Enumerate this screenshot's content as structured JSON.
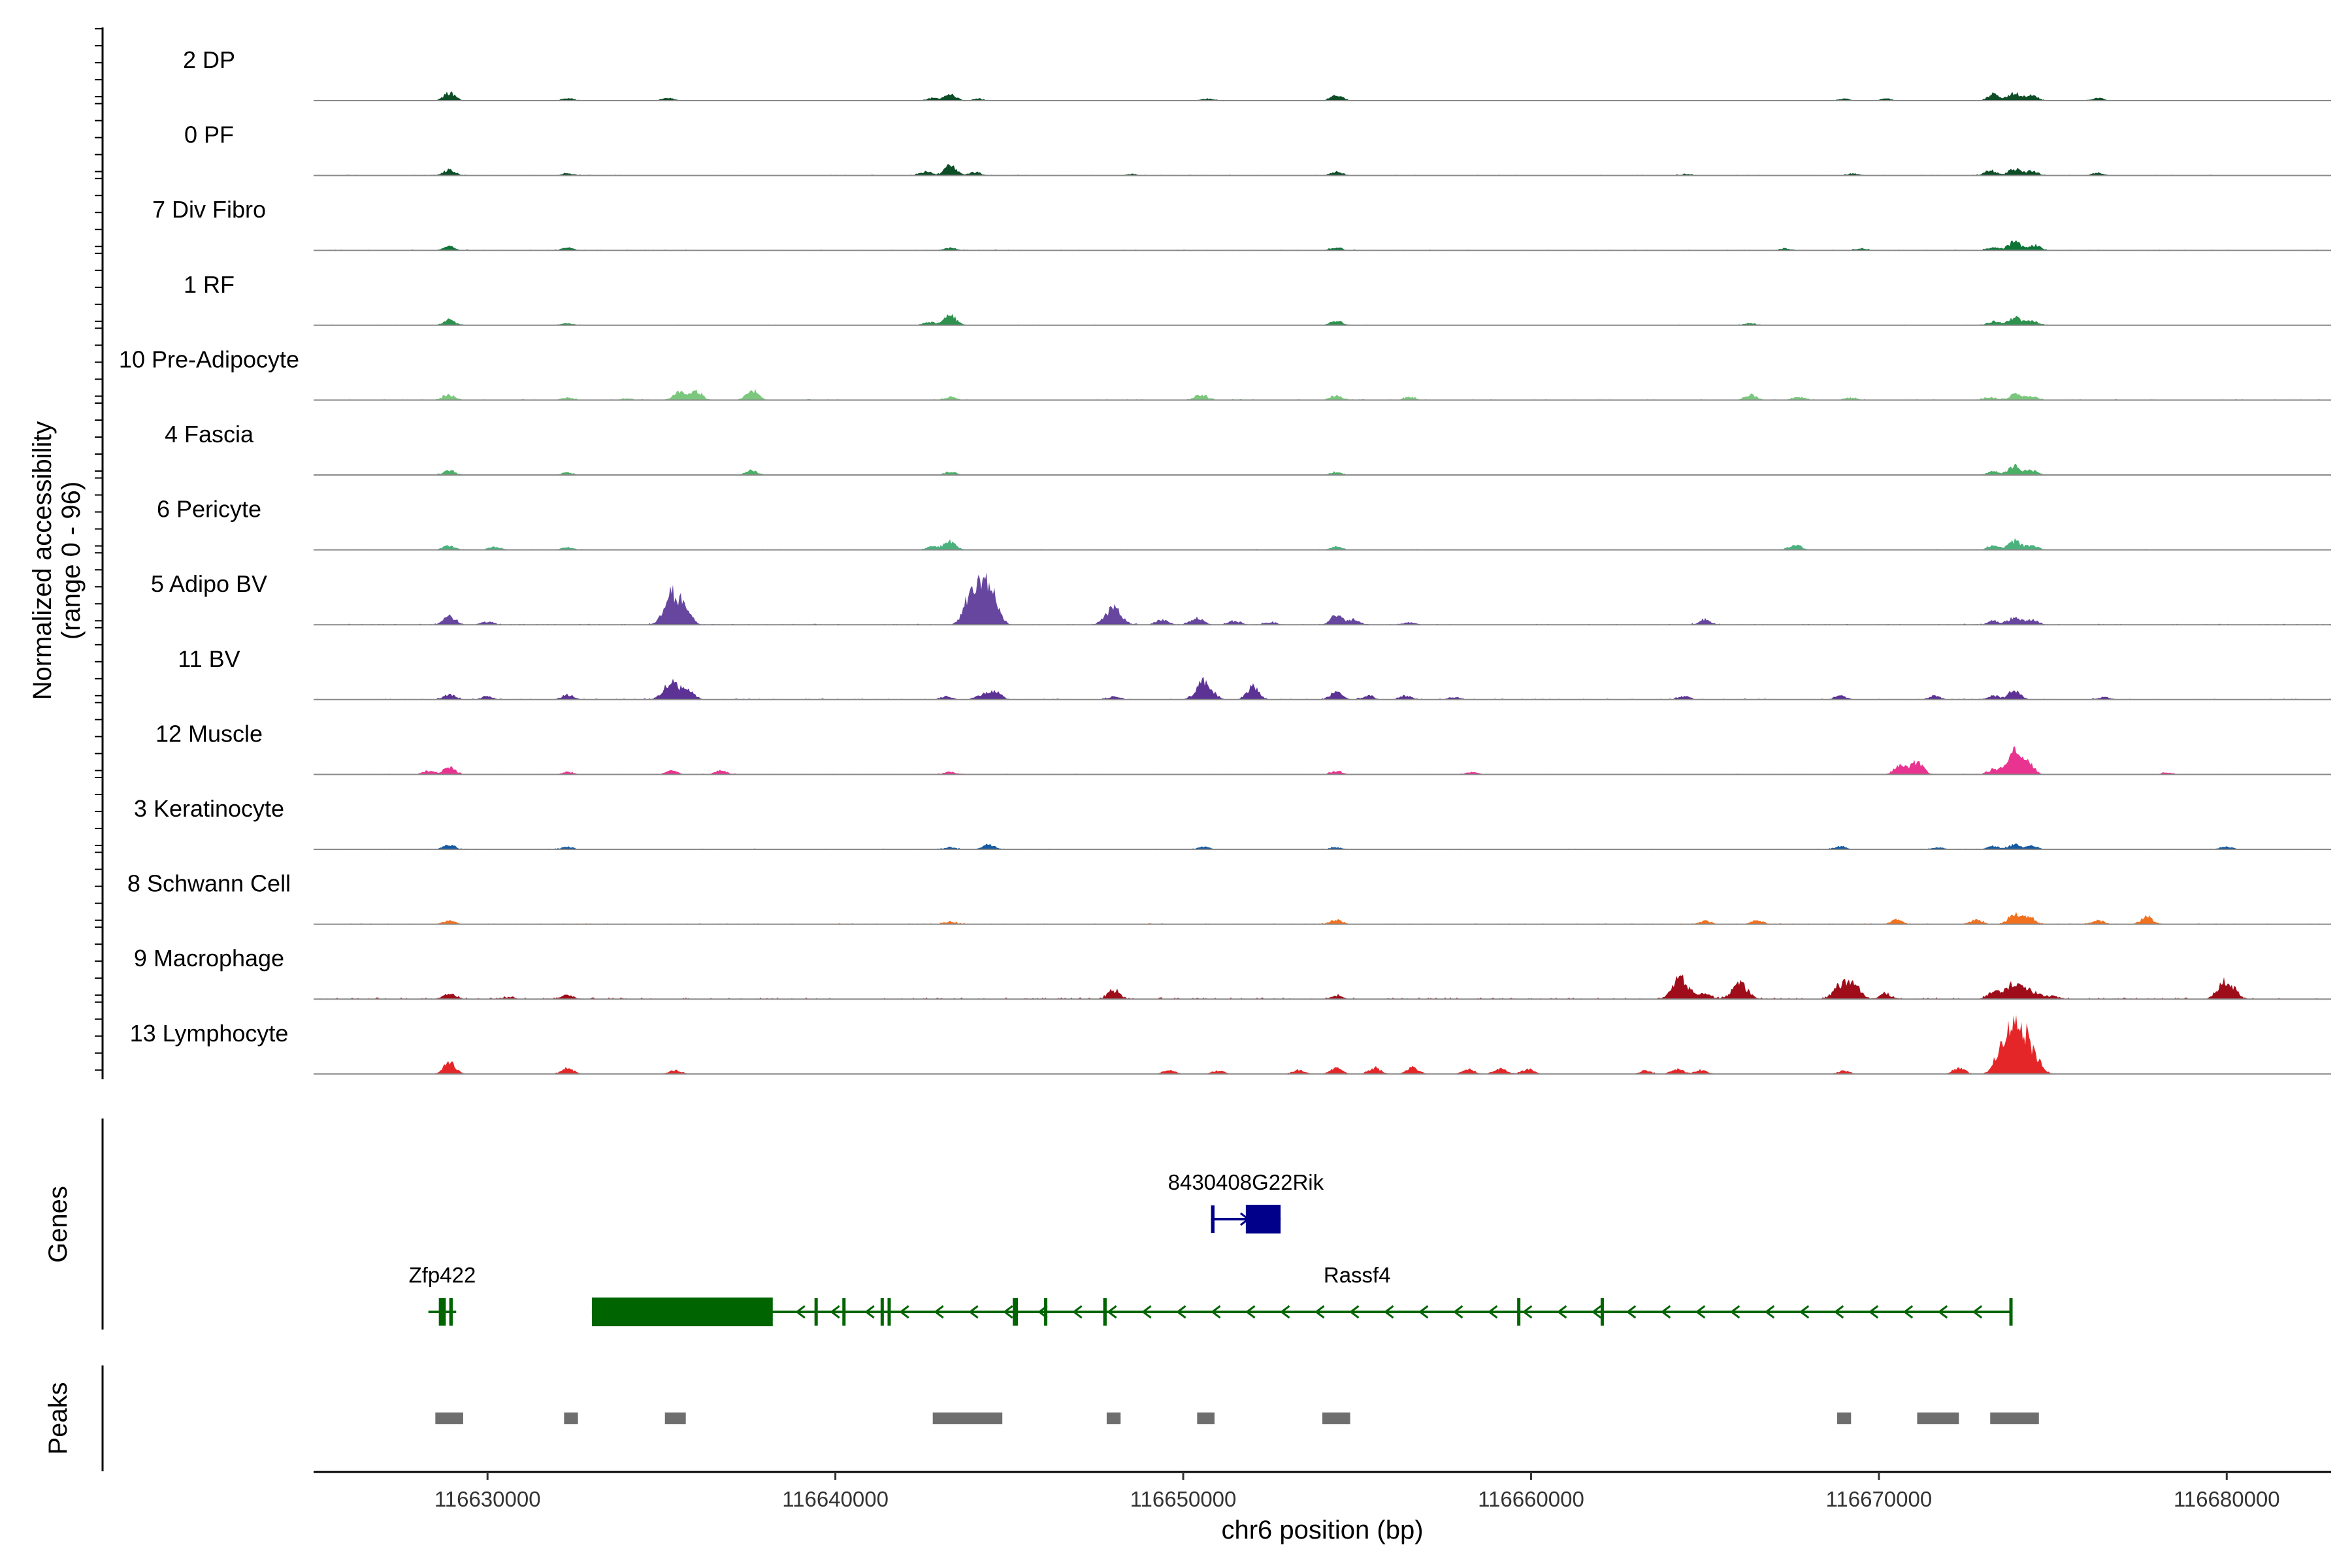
{
  "chart_data": {
    "type": "area",
    "region": {
      "chromosome": "chr6",
      "start": 116625000,
      "end": 116683000
    },
    "ylabel_line1": "Normalized accessibility",
    "ylabel_line2": "(range 0 - 96)",
    "xlabel": "chr6 position (bp)",
    "x_ticks": [
      116630000,
      116640000,
      116650000,
      116660000,
      116670000,
      116680000
    ],
    "x_tick_labels": [
      "116630000",
      "116640000",
      "116650000",
      "116660000",
      "116670000",
      "116680000"
    ],
    "ylim": [
      0,
      96
    ],
    "grid": false,
    "panel_labels": {
      "genes": "Genes",
      "peaks": "Peaks"
    },
    "tracks": [
      {
        "name": "2 DP",
        "color": "#00441b",
        "peaks": [
          [
            116628900,
            12
          ],
          [
            116632300,
            4
          ],
          [
            116635200,
            4
          ],
          [
            116643300,
            10
          ],
          [
            116642800,
            4
          ],
          [
            116644100,
            3
          ],
          [
            116650700,
            3
          ],
          [
            116654400,
            9
          ],
          [
            116669000,
            3
          ],
          [
            116670200,
            3
          ],
          [
            116673900,
            12
          ],
          [
            116673300,
            10
          ],
          [
            116674400,
            8
          ],
          [
            116676300,
            4
          ]
        ],
        "baseline": 0.8
      },
      {
        "name": "0 PF",
        "color": "#00441b",
        "peaks": [
          [
            116628900,
            9
          ],
          [
            116632300,
            3
          ],
          [
            116643300,
            16
          ],
          [
            116642600,
            6
          ],
          [
            116644000,
            5
          ],
          [
            116654400,
            6
          ],
          [
            116648500,
            2
          ],
          [
            116664500,
            2
          ],
          [
            116669300,
            3
          ],
          [
            116673900,
            11
          ],
          [
            116673200,
            8
          ],
          [
            116674400,
            7
          ],
          [
            116676300,
            4
          ]
        ],
        "baseline": 1.2
      },
      {
        "name": "7 Div Fibro",
        "color": "#006d2c",
        "peaks": [
          [
            116628900,
            6
          ],
          [
            116632300,
            4
          ],
          [
            116643300,
            4
          ],
          [
            116654400,
            4
          ],
          [
            116667300,
            3
          ],
          [
            116669500,
            3
          ],
          [
            116673900,
            14
          ],
          [
            116673300,
            5
          ],
          [
            116674500,
            8
          ]
        ],
        "baseline": 1.3
      },
      {
        "name": "1 RF",
        "color": "#238b45",
        "peaks": [
          [
            116628900,
            9
          ],
          [
            116632300,
            3
          ],
          [
            116643300,
            16
          ],
          [
            116642700,
            5
          ],
          [
            116654400,
            7
          ],
          [
            116666300,
            3
          ],
          [
            116673900,
            12
          ],
          [
            116673300,
            6
          ],
          [
            116674400,
            7
          ]
        ],
        "baseline": 1.0
      },
      {
        "name": "10 Pre-Adipocyte",
        "color": "#74c476",
        "peaks": [
          [
            116628900,
            9
          ],
          [
            116632300,
            4
          ],
          [
            116635500,
            12
          ],
          [
            116636000,
            14
          ],
          [
            116637600,
            16
          ],
          [
            116634000,
            3
          ],
          [
            116643300,
            5
          ],
          [
            116650500,
            9
          ],
          [
            116654400,
            7
          ],
          [
            116656500,
            5
          ],
          [
            116666300,
            9
          ],
          [
            116667700,
            5
          ],
          [
            116669200,
            4
          ],
          [
            116673900,
            9
          ],
          [
            116673200,
            5
          ],
          [
            116674400,
            6
          ]
        ],
        "baseline": 1.5
      },
      {
        "name": "4 Fascia",
        "color": "#41ab5d",
        "peaks": [
          [
            116628900,
            8
          ],
          [
            116632300,
            4
          ],
          [
            116637600,
            7
          ],
          [
            116643300,
            5
          ],
          [
            116654400,
            5
          ],
          [
            116673900,
            14
          ],
          [
            116673300,
            6
          ],
          [
            116674400,
            7
          ]
        ],
        "baseline": 0.8
      },
      {
        "name": "6 Pericyte",
        "color": "#41ae76",
        "peaks": [
          [
            116628900,
            7
          ],
          [
            116630200,
            5
          ],
          [
            116632300,
            4
          ],
          [
            116643300,
            13
          ],
          [
            116642800,
            5
          ],
          [
            116654400,
            5
          ],
          [
            116667600,
            8
          ],
          [
            116673900,
            14
          ],
          [
            116673300,
            7
          ],
          [
            116674400,
            7
          ]
        ],
        "baseline": 1.2
      },
      {
        "name": "5 Adipo BV",
        "color": "#5e3c99",
        "peaks": [
          [
            116628900,
            14
          ],
          [
            116630000,
            5
          ],
          [
            116635300,
            50
          ],
          [
            116635700,
            20
          ],
          [
            116644000,
            40
          ],
          [
            116644400,
            65
          ],
          [
            116643800,
            15
          ],
          [
            116648000,
            28
          ],
          [
            116649400,
            8
          ],
          [
            116650400,
            12
          ],
          [
            116651500,
            6
          ],
          [
            116652500,
            4
          ],
          [
            116654400,
            14
          ],
          [
            116654900,
            8
          ],
          [
            116656500,
            4
          ],
          [
            116665000,
            8
          ],
          [
            116673900,
            12
          ],
          [
            116673300,
            6
          ],
          [
            116674400,
            8
          ]
        ],
        "baseline": 1.5
      },
      {
        "name": "11 BV",
        "color": "#54278f",
        "peaks": [
          [
            116628900,
            8
          ],
          [
            116630000,
            5
          ],
          [
            116632300,
            8
          ],
          [
            116635300,
            30
          ],
          [
            116635800,
            12
          ],
          [
            116643200,
            5
          ],
          [
            116644200,
            8
          ],
          [
            116644600,
            14
          ],
          [
            116648000,
            5
          ],
          [
            116650600,
            28
          ],
          [
            116652000,
            20
          ],
          [
            116654400,
            12
          ],
          [
            116655300,
            6
          ],
          [
            116656400,
            6
          ],
          [
            116657800,
            4
          ],
          [
            116664400,
            5
          ],
          [
            116668900,
            6
          ],
          [
            116671600,
            6
          ],
          [
            116673900,
            14
          ],
          [
            116673300,
            6
          ],
          [
            116676500,
            4
          ]
        ],
        "baseline": 1.6
      },
      {
        "name": "12 Muscle",
        "color": "#e7298a",
        "peaks": [
          [
            116628900,
            12
          ],
          [
            116628300,
            6
          ],
          [
            116632300,
            4
          ],
          [
            116635300,
            6
          ],
          [
            116636700,
            6
          ],
          [
            116643300,
            4
          ],
          [
            116654400,
            5
          ],
          [
            116658300,
            4
          ],
          [
            116671100,
            20
          ],
          [
            116670600,
            14
          ],
          [
            116673900,
            34
          ],
          [
            116674300,
            14
          ],
          [
            116673300,
            8
          ],
          [
            116678300,
            3
          ]
        ],
        "baseline": 1.2
      },
      {
        "name": "3 Keratinocyte",
        "color": "#08519c",
        "peaks": [
          [
            116628900,
            7
          ],
          [
            116632300,
            4
          ],
          [
            116644400,
            8
          ],
          [
            116643300,
            3
          ],
          [
            116650600,
            4
          ],
          [
            116654400,
            3
          ],
          [
            116668900,
            4
          ],
          [
            116671700,
            3
          ],
          [
            116673900,
            7
          ],
          [
            116673300,
            5
          ],
          [
            116674400,
            5
          ],
          [
            116680000,
            4
          ]
        ],
        "baseline": 1.2
      },
      {
        "name": "8 Schwann Cell",
        "color": "#f16913",
        "peaks": [
          [
            116628900,
            6
          ],
          [
            116643300,
            4
          ],
          [
            116654400,
            7
          ],
          [
            116665000,
            5
          ],
          [
            116666500,
            6
          ],
          [
            116670500,
            7
          ],
          [
            116672800,
            7
          ],
          [
            116673900,
            16
          ],
          [
            116674300,
            12
          ],
          [
            116676300,
            6
          ],
          [
            116677700,
            12
          ]
        ],
        "baseline": 1.4
      },
      {
        "name": "9 Macrophage",
        "color": "#99000d",
        "peaks": [
          [
            116628900,
            9
          ],
          [
            116630600,
            3
          ],
          [
            116632300,
            6
          ],
          [
            116648000,
            14
          ],
          [
            116654400,
            5
          ],
          [
            116664300,
            34
          ],
          [
            116665000,
            8
          ],
          [
            116666000,
            24
          ],
          [
            116668800,
            14
          ],
          [
            116669200,
            30
          ],
          [
            116670200,
            8
          ],
          [
            116673300,
            12
          ],
          [
            116673800,
            18
          ],
          [
            116674100,
            20
          ],
          [
            116674500,
            10
          ],
          [
            116675000,
            5
          ],
          [
            116680000,
            30
          ]
        ],
        "baseline": 2.5
      },
      {
        "name": "13 Lymphocyte",
        "color": "#e41a1c",
        "peaks": [
          [
            116628900,
            18
          ],
          [
            116632300,
            10
          ],
          [
            116635400,
            6
          ],
          [
            116649600,
            6
          ],
          [
            116651000,
            5
          ],
          [
            116653300,
            6
          ],
          [
            116654400,
            9
          ],
          [
            116655500,
            10
          ],
          [
            116656600,
            10
          ],
          [
            116658200,
            8
          ],
          [
            116659100,
            9
          ],
          [
            116659900,
            8
          ],
          [
            116663300,
            5
          ],
          [
            116664200,
            8
          ],
          [
            116664900,
            6
          ],
          [
            116669000,
            5
          ],
          [
            116672300,
            10
          ],
          [
            116673600,
            48
          ],
          [
            116673950,
            50
          ],
          [
            116674250,
            42
          ],
          [
            116674600,
            10
          ]
        ],
        "baseline": 0.6
      }
    ],
    "genes": [
      {
        "name": "8430408G22Rik",
        "color": "#00008b",
        "start": 116650800,
        "end": 116652800,
        "strand": "+",
        "exons": [
          [
            116650800,
            116650900
          ],
          [
            116651800,
            116652800
          ]
        ],
        "row": 0
      },
      {
        "name": "Zfp422",
        "color": "#006400",
        "start": 116628300,
        "end": 116629100,
        "strand": "-",
        "exons": [
          [
            116628600,
            116628800
          ],
          [
            116628900,
            116629000
          ]
        ],
        "row": 1
      },
      {
        "name": "Rassf4",
        "color": "#006400",
        "start": 116633000,
        "end": 116673800,
        "strand": "-",
        "exons": [
          [
            116633000,
            116638200
          ],
          [
            116639400,
            116639450
          ],
          [
            116640200,
            116640250
          ],
          [
            116641300,
            116641350
          ],
          [
            116641500,
            116641550
          ],
          [
            116645100,
            116645250
          ],
          [
            116646000,
            116646050
          ],
          [
            116647700,
            116647800
          ],
          [
            116659600,
            116659650
          ],
          [
            116662000,
            116662050
          ],
          [
            116673750,
            116673800
          ]
        ],
        "row": 1,
        "label_x": 116655000
      }
    ],
    "peaks": [
      [
        116628500,
        116629300
      ],
      [
        116632200,
        116632600
      ],
      [
        116635100,
        116635700
      ],
      [
        116642800,
        116644800
      ],
      [
        116647800,
        116648200
      ],
      [
        116650400,
        116650900
      ],
      [
        116654000,
        116654800
      ],
      [
        116668800,
        116669200
      ],
      [
        116671100,
        116672300
      ],
      [
        116673200,
        116674600
      ]
    ]
  }
}
